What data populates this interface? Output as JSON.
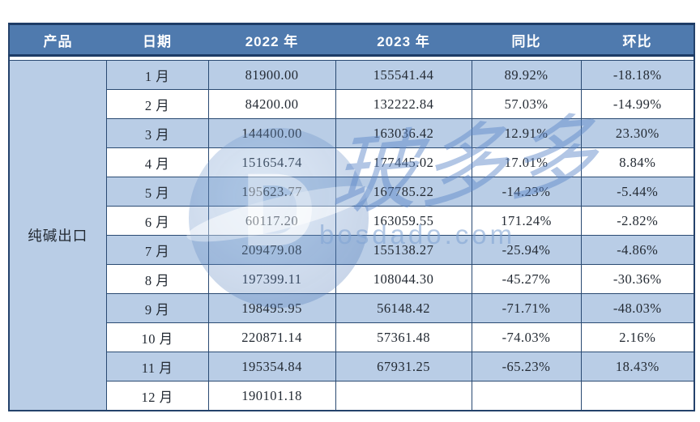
{
  "table": {
    "product": "纯碱出口",
    "headers": [
      "产品",
      "日期",
      "2022 年",
      "2023 年",
      "同比",
      "环比"
    ],
    "rows": [
      {
        "month": "1 月",
        "y2022": "81900.00",
        "y2023": "155541.44",
        "yoy": "89.92%",
        "mom": "-18.18%"
      },
      {
        "month": "2 月",
        "y2022": "84200.00",
        "y2023": "132222.84",
        "yoy": "57.03%",
        "mom": "-14.99%"
      },
      {
        "month": "3 月",
        "y2022": "144400.00",
        "y2023": "163036.42",
        "yoy": "12.91%",
        "mom": "23.30%"
      },
      {
        "month": "4 月",
        "y2022": "151654.74",
        "y2023": "177445.02",
        "yoy": "17.01%",
        "mom": "8.84%"
      },
      {
        "month": "5 月",
        "y2022": "195623.77",
        "y2023": "167785.22",
        "yoy": "-14.23%",
        "mom": "-5.44%"
      },
      {
        "month": "6 月",
        "y2022": "60117.20",
        "y2023": "163059.55",
        "yoy": "171.24%",
        "mom": "-2.82%"
      },
      {
        "month": "7 月",
        "y2022": "209479.08",
        "y2023": "155138.27",
        "yoy": "-25.94%",
        "mom": "-4.86%"
      },
      {
        "month": "8 月",
        "y2022": "197399.11",
        "y2023": "108044.30",
        "yoy": "-45.27%",
        "mom": "-30.36%"
      },
      {
        "month": "9 月",
        "y2022": "198495.95",
        "y2023": "56148.42",
        "yoy": "-71.71%",
        "mom": "-48.03%"
      },
      {
        "month": "10 月",
        "y2022": "220871.14",
        "y2023": "57361.48",
        "yoy": "-74.03%",
        "mom": "2.16%"
      },
      {
        "month": "11 月",
        "y2022": "195354.84",
        "y2023": "67931.25",
        "yoy": "-65.23%",
        "mom": "18.43%"
      },
      {
        "month": "12 月",
        "y2022": "190101.18",
        "y2023": "",
        "yoy": "",
        "mom": ""
      }
    ]
  },
  "watermark": {
    "logo": "globe-d-logo",
    "logo_letter": "D",
    "brand": "玻多多",
    "domain": "bosdado.com"
  },
  "colors": {
    "header_bg": "#4f7aae",
    "header_text": "#ffffff",
    "row_shade": "#b9cde6",
    "row_plain": "#ffffff",
    "grid_border": "#2a4a72",
    "outer_border": "#24426b",
    "header_border": "#1d3c66",
    "body_text": "#232a33",
    "watermark_blue": "#5f87c8"
  },
  "chart_data": {
    "type": "table",
    "columns": [
      "产品",
      "日期",
      "2022 年",
      "2023 年",
      "同比",
      "环比"
    ],
    "product": "纯碱出口",
    "categories": [
      "1月",
      "2月",
      "3月",
      "4月",
      "5月",
      "6月",
      "7月",
      "8月",
      "9月",
      "10月",
      "11月",
      "12月"
    ],
    "series": [
      {
        "name": "2022 年",
        "values": [
          81900.0,
          84200.0,
          144400.0,
          151654.74,
          195623.77,
          60117.2,
          209479.08,
          197399.11,
          198495.95,
          220871.14,
          195354.84,
          190101.18
        ]
      },
      {
        "name": "2023 年",
        "values": [
          155541.44,
          132222.84,
          163036.42,
          177445.02,
          167785.22,
          163059.55,
          155138.27,
          108044.3,
          56148.42,
          57361.48,
          67931.25,
          null
        ]
      },
      {
        "name": "同比",
        "values": [
          "89.92%",
          "57.03%",
          "12.91%",
          "17.01%",
          "-14.23%",
          "171.24%",
          "-25.94%",
          "-45.27%",
          "-71.71%",
          "-74.03%",
          "-65.23%",
          null
        ]
      },
      {
        "name": "环比",
        "values": [
          "-18.18%",
          "-14.99%",
          "23.30%",
          "8.84%",
          "-5.44%",
          "-2.82%",
          "-4.86%",
          "-30.36%",
          "-48.03%",
          "2.16%",
          "18.43%",
          null
        ]
      }
    ],
    "layout_hints": {
      "striped_rows": true,
      "first_column_rowspan": true,
      "grid": true
    }
  }
}
